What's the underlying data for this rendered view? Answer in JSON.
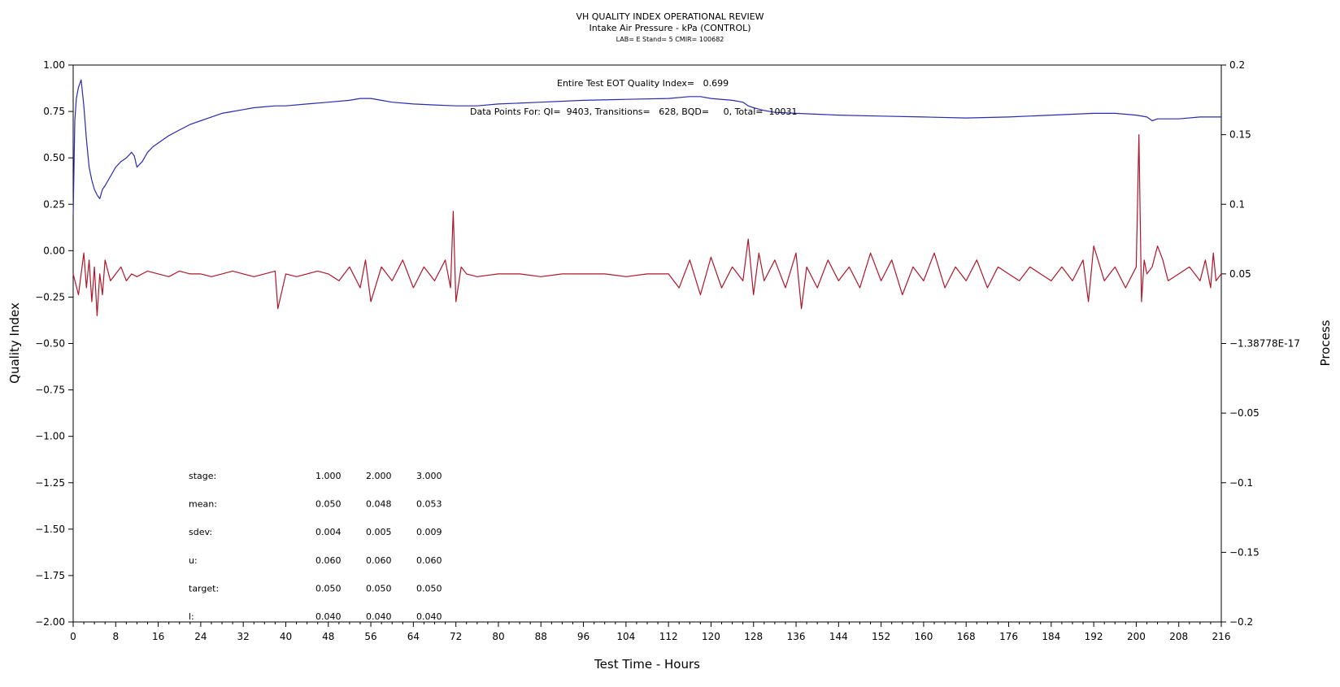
{
  "chart_data": {
    "type": "line",
    "title": "VH QUALITY INDEX OPERATIONAL REVIEW",
    "subtitle": "Intake Air Pressure - kPa (CONTROL)",
    "subtitle2": "LAB= E Stand= 5 CMIR= 100682",
    "xlabel": "Test Time - Hours",
    "ylabel": "Quality Index",
    "y2label": "Process",
    "xlim": [
      0,
      216
    ],
    "ylim": [
      -2.0,
      1.0
    ],
    "y2lim": [
      -0.2,
      0.2
    ],
    "x_ticks": [
      "0",
      "8",
      "16",
      "24",
      "32",
      "40",
      "48",
      "56",
      "64",
      "72",
      "80",
      "88",
      "96",
      "104",
      "112",
      "120",
      "128",
      "136",
      "144",
      "152",
      "160",
      "168",
      "176",
      "184",
      "192",
      "200",
      "208",
      "216"
    ],
    "y_ticks": [
      "1.00",
      "0.75",
      "0.50",
      "0.25",
      "0.00",
      "-0.25",
      "-0.50",
      "-0.75",
      "-1.00",
      "-1.25",
      "-1.50",
      "-1.75",
      "-2.00"
    ],
    "y2_ticks": [
      "0.2",
      "0.15",
      "0.1",
      "0.05",
      "-1.38778E-17",
      "-0.05",
      "-0.1",
      "-0.15",
      "-0.2"
    ],
    "annotation_qi": "Entire Test EOT Quality Index=   0.699",
    "annotation_counts": "Data Points For: QI=  9403, Transitions=   628, BQD=     0, Total=  10031",
    "series": [
      {
        "axis": "left",
        "color": "#2a2ab0",
        "x": [
          0,
          0.3,
          0.6,
          1,
          1.5,
          2,
          2.5,
          3,
          3.5,
          4,
          4.5,
          5,
          5.5,
          6,
          7,
          8,
          9,
          10,
          11,
          11.5,
          12,
          13,
          14,
          15,
          16,
          18,
          20,
          22,
          24,
          26,
          28,
          30,
          32,
          34,
          36,
          38,
          40,
          44,
          48,
          52,
          54,
          56,
          58,
          60,
          64,
          68,
          72,
          76,
          80,
          88,
          96,
          104,
          112,
          116,
          118,
          120,
          124,
          126,
          127,
          128,
          130,
          132,
          136,
          140,
          144,
          152,
          160,
          168,
          176,
          184,
          192,
          196,
          200,
          202,
          203,
          204,
          208,
          212,
          214,
          216
        ],
        "y": [
          0.19,
          0.7,
          0.82,
          0.88,
          0.92,
          0.78,
          0.6,
          0.45,
          0.38,
          0.33,
          0.3,
          0.28,
          0.33,
          0.35,
          0.4,
          0.45,
          0.48,
          0.5,
          0.53,
          0.51,
          0.45,
          0.48,
          0.53,
          0.56,
          0.58,
          0.62,
          0.65,
          0.68,
          0.7,
          0.72,
          0.74,
          0.75,
          0.76,
          0.77,
          0.775,
          0.78,
          0.78,
          0.79,
          0.8,
          0.81,
          0.82,
          0.82,
          0.81,
          0.8,
          0.79,
          0.785,
          0.78,
          0.78,
          0.79,
          0.8,
          0.81,
          0.815,
          0.82,
          0.83,
          0.83,
          0.82,
          0.81,
          0.8,
          0.78,
          0.77,
          0.755,
          0.745,
          0.74,
          0.735,
          0.73,
          0.725,
          0.72,
          0.715,
          0.72,
          0.73,
          0.74,
          0.74,
          0.73,
          0.72,
          0.7,
          0.71,
          0.71,
          0.72,
          0.72,
          0.72
        ]
      },
      {
        "axis": "right",
        "color": "#b0162a",
        "x": [
          0,
          1,
          2,
          2.5,
          3,
          3.5,
          4,
          4.5,
          5,
          5.5,
          6,
          7,
          8,
          9,
          10,
          11,
          12,
          14,
          16,
          18,
          20,
          22,
          24,
          26,
          28,
          30,
          32,
          34,
          36,
          38,
          38.5,
          40,
          42,
          44,
          46,
          48,
          50,
          52,
          54,
          55,
          56,
          58,
          60,
          62,
          64,
          66,
          68,
          70,
          71,
          71.5,
          72,
          73,
          74,
          76,
          80,
          84,
          88,
          92,
          96,
          100,
          104,
          108,
          112,
          114,
          116,
          118,
          120,
          122,
          124,
          126,
          127,
          128,
          129,
          130,
          132,
          134,
          136,
          137,
          138,
          140,
          142,
          144,
          146,
          148,
          150,
          152,
          154,
          156,
          158,
          160,
          162,
          164,
          166,
          168,
          170,
          172,
          174,
          176,
          178,
          180,
          182,
          184,
          186,
          188,
          190,
          191,
          192,
          194,
          196,
          198,
          200,
          200.5,
          201,
          201.5,
          202,
          203,
          204,
          205,
          206,
          208,
          210,
          212,
          213,
          214,
          214.5,
          215,
          216
        ],
        "y": [
          0.05,
          0.035,
          0.065,
          0.04,
          0.06,
          0.03,
          0.055,
          0.02,
          0.05,
          0.035,
          0.06,
          0.045,
          0.05,
          0.055,
          0.045,
          0.05,
          0.048,
          0.052,
          0.05,
          0.048,
          0.052,
          0.05,
          0.05,
          0.048,
          0.05,
          0.052,
          0.05,
          0.048,
          0.05,
          0.052,
          0.025,
          0.05,
          0.048,
          0.05,
          0.052,
          0.05,
          0.045,
          0.055,
          0.04,
          0.06,
          0.03,
          0.055,
          0.045,
          0.06,
          0.04,
          0.055,
          0.045,
          0.06,
          0.04,
          0.095,
          0.03,
          0.055,
          0.05,
          0.048,
          0.05,
          0.05,
          0.048,
          0.05,
          0.05,
          0.05,
          0.048,
          0.05,
          0.05,
          0.04,
          0.06,
          0.035,
          0.062,
          0.04,
          0.055,
          0.045,
          0.075,
          0.035,
          0.065,
          0.045,
          0.06,
          0.04,
          0.065,
          0.025,
          0.055,
          0.04,
          0.06,
          0.045,
          0.055,
          0.04,
          0.065,
          0.045,
          0.06,
          0.035,
          0.055,
          0.045,
          0.065,
          0.04,
          0.055,
          0.045,
          0.06,
          0.04,
          0.055,
          0.05,
          0.045,
          0.055,
          0.05,
          0.045,
          0.055,
          0.045,
          0.06,
          0.03,
          0.07,
          0.045,
          0.055,
          0.04,
          0.055,
          0.15,
          0.03,
          0.06,
          0.05,
          0.055,
          0.07,
          0.06,
          0.045,
          0.05,
          0.055,
          0.045,
          0.06,
          0.04,
          0.065,
          0.045,
          0.05
        ]
      }
    ]
  },
  "stats_table": {
    "rows": [
      {
        "label": "stage:",
        "values": [
          "1.000",
          "2.000",
          "3.000"
        ]
      },
      {
        "label": "mean:",
        "values": [
          "0.050",
          "0.048",
          "0.053"
        ]
      },
      {
        "label": "sdev:",
        "values": [
          "0.004",
          "0.005",
          "0.009"
        ]
      },
      {
        "label": "u:",
        "values": [
          "0.060",
          "0.060",
          "0.060"
        ]
      },
      {
        "label": "target:",
        "values": [
          "0.050",
          "0.050",
          "0.050"
        ]
      },
      {
        "label": "l:",
        "values": [
          "0.040",
          "0.040",
          "0.040"
        ]
      }
    ]
  }
}
